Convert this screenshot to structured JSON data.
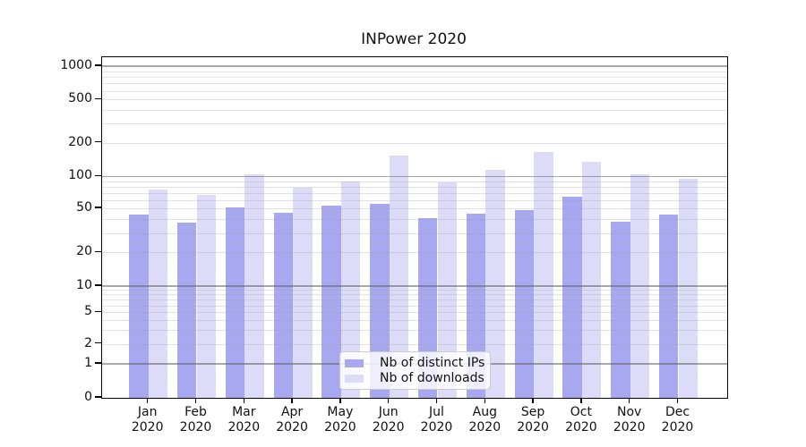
{
  "title": "INPower 2020",
  "chart_data": {
    "type": "bar",
    "title": "INPower 2020",
    "xlabel": "",
    "ylabel": "",
    "yscale": "symlog",
    "grid": "horizontal major and minor gridlines, drawn over bars",
    "legend_position": "lower center, inside plot, semi-transparent box",
    "categories": [
      "Jan",
      "Feb",
      "Mar",
      "Apr",
      "May",
      "Jun",
      "Jul",
      "Aug",
      "Sep",
      "Oct",
      "Nov",
      "Dec"
    ],
    "year_label": "2020",
    "y_ticks": [
      0,
      1,
      2,
      5,
      10,
      20,
      50,
      100,
      200,
      500,
      1000
    ],
    "ylim": [
      0,
      1200
    ],
    "series": [
      {
        "name": "Nb of distinct IPs",
        "color": "#a8a8f1",
        "values": [
          44,
          37,
          51,
          46,
          53,
          55,
          41,
          45,
          48,
          64,
          38,
          44
        ]
      },
      {
        "name": "Nb of downloads",
        "color": "#dcdcf8",
        "values": [
          75,
          67,
          105,
          79,
          89,
          155,
          88,
          114,
          167,
          136,
          104,
          95
        ]
      }
    ]
  },
  "colors": {
    "background": "#ffffff",
    "axis": "#000000",
    "major_grid": "#aaaaaa",
    "minor_grid": "#e6e6e6",
    "text": "#111111"
  }
}
